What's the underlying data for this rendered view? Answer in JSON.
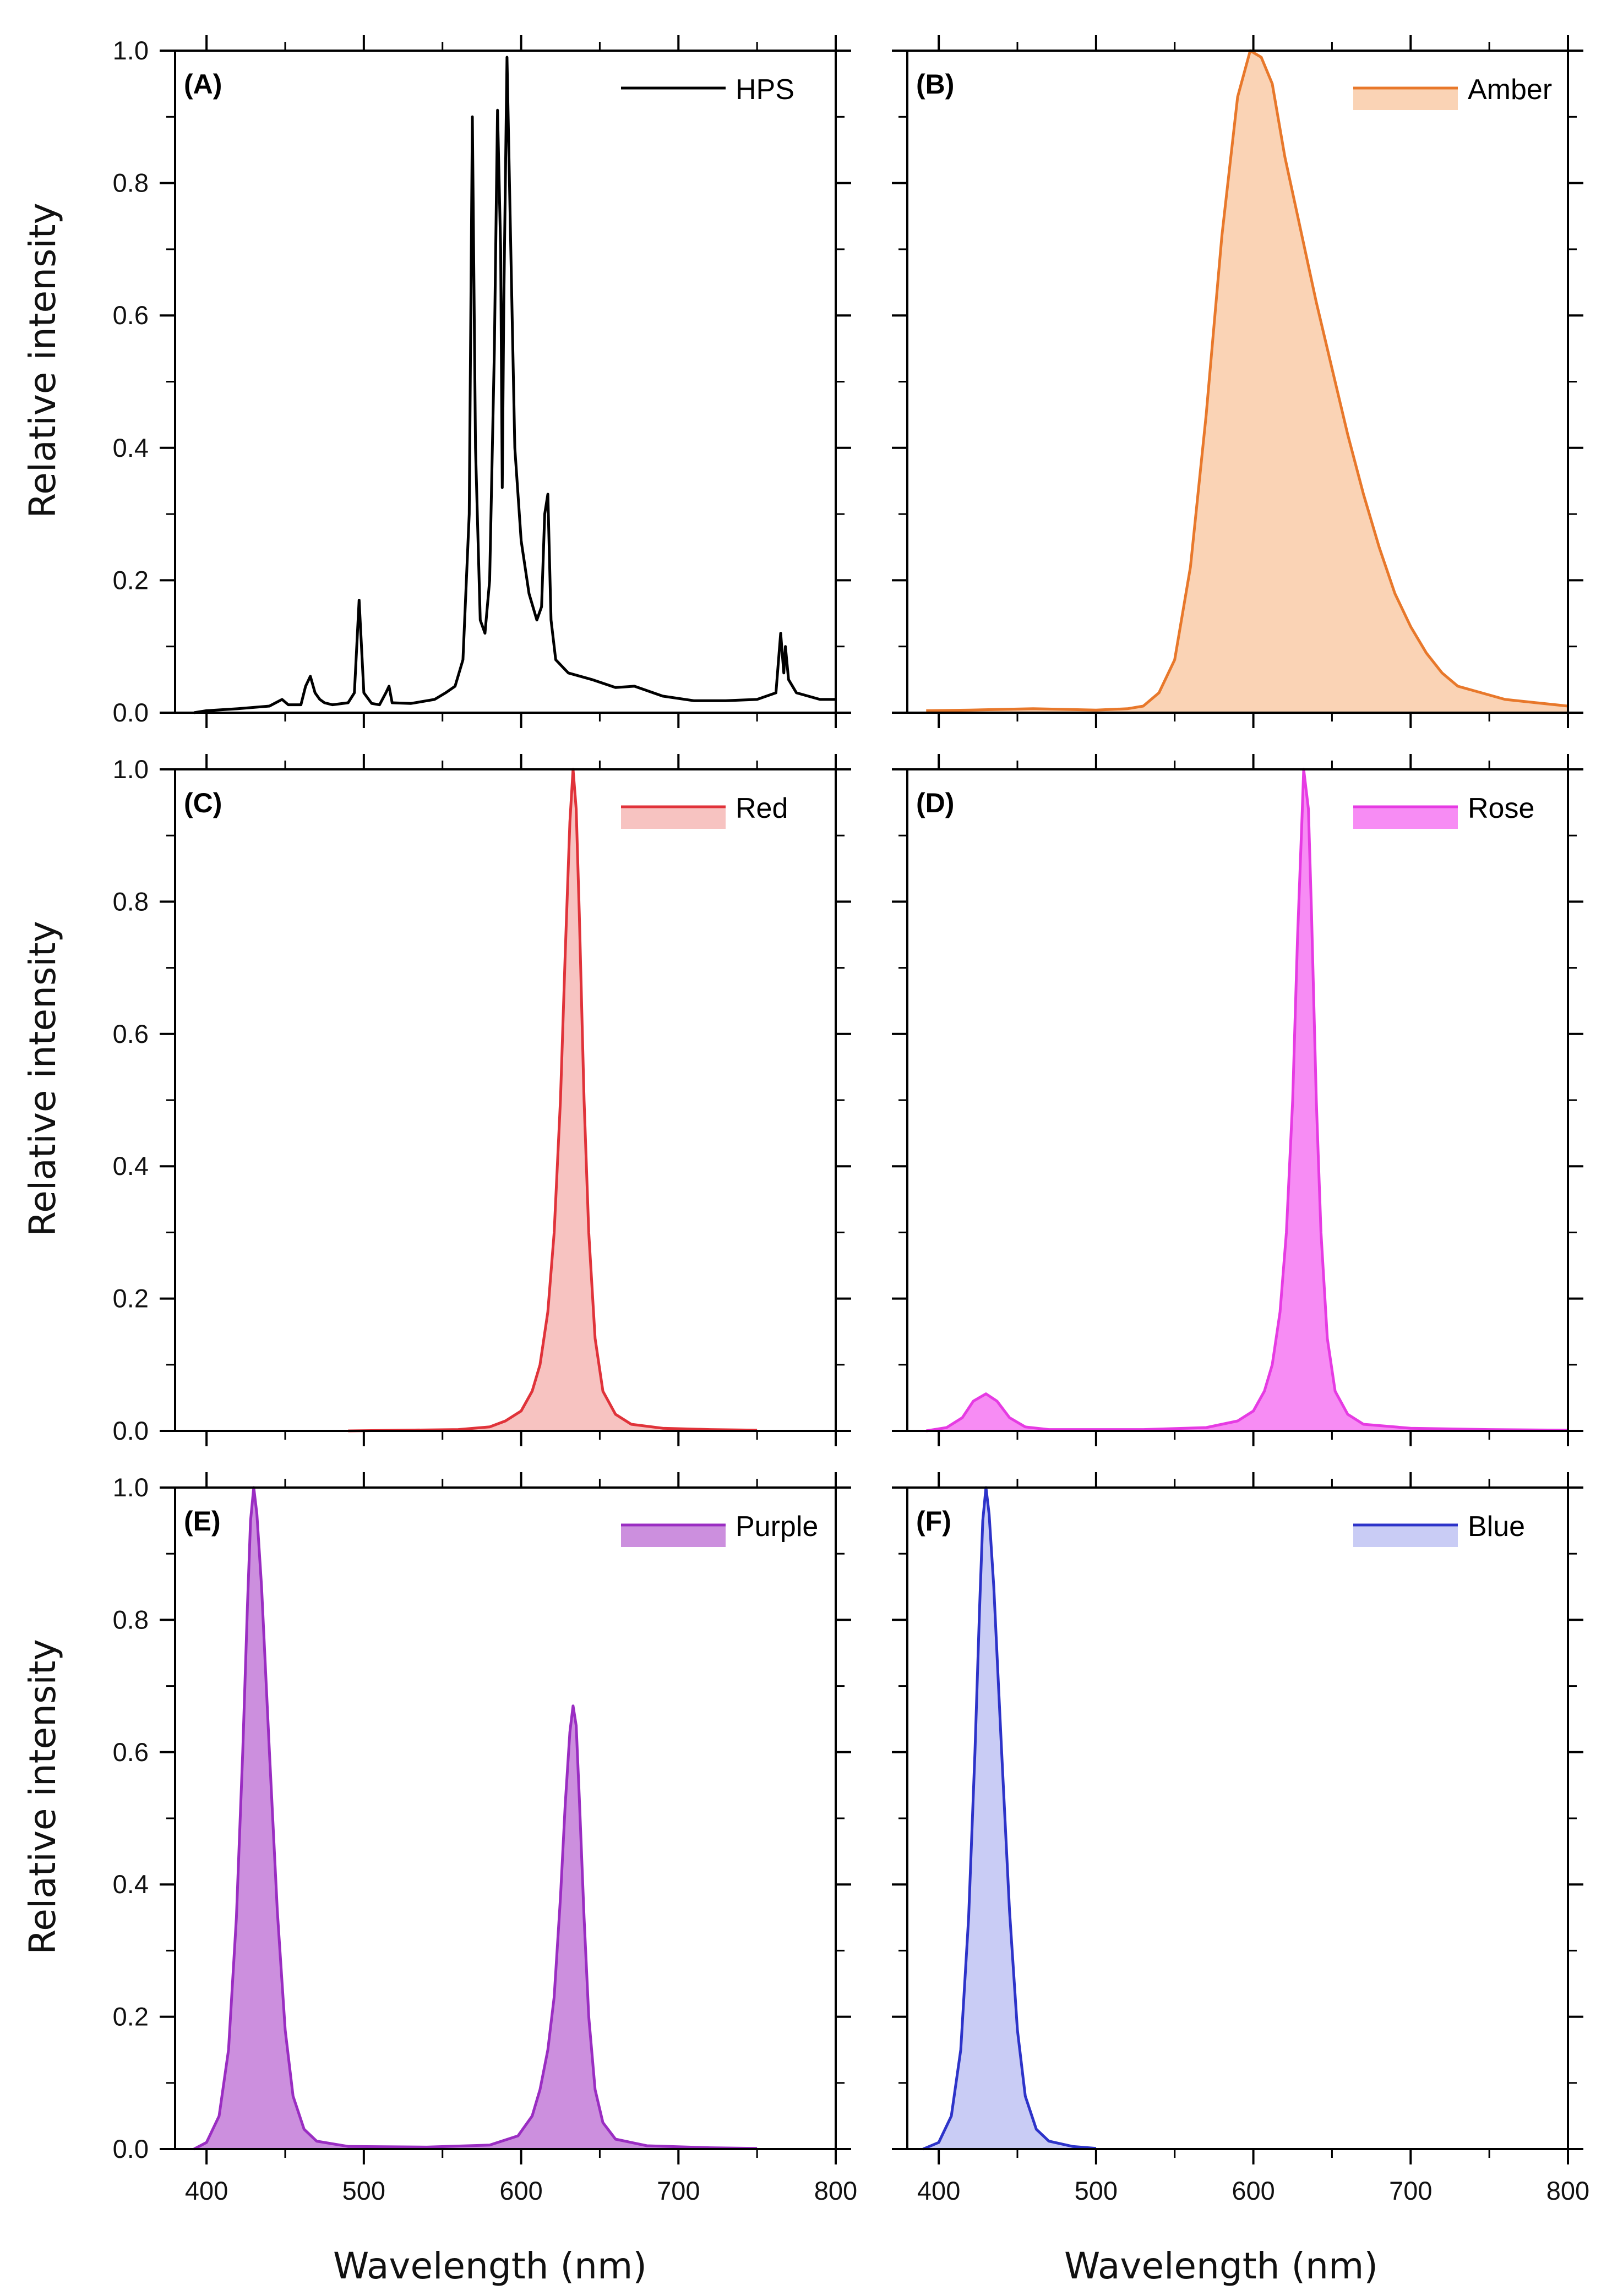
{
  "axes": {
    "ylabel": "Relative intensity",
    "xlabel": "Wavelength (nm)",
    "x_ticks": [
      "400",
      "500",
      "600",
      "700",
      "800"
    ],
    "y_ticks": [
      "0.0",
      "0.2",
      "0.4",
      "0.6",
      "0.8",
      "1.0"
    ]
  },
  "chart_data": [
    {
      "type": "line",
      "panel": "(A)",
      "legend": "HPS",
      "color": "#000000",
      "fill": "none",
      "xlim": [
        380,
        800
      ],
      "ylim": [
        0,
        1
      ],
      "xlabel": "",
      "ylabel": "Relative intensity",
      "points": [
        [
          392,
          0
        ],
        [
          400,
          0.003
        ],
        [
          420,
          0.006
        ],
        [
          440,
          0.01
        ],
        [
          448,
          0.02
        ],
        [
          452,
          0.012
        ],
        [
          460,
          0.012
        ],
        [
          463,
          0.04
        ],
        [
          466,
          0.055
        ],
        [
          469,
          0.03
        ],
        [
          472,
          0.02
        ],
        [
          475,
          0.015
        ],
        [
          480,
          0.012
        ],
        [
          490,
          0.015
        ],
        [
          494,
          0.03
        ],
        [
          497,
          0.17
        ],
        [
          500,
          0.03
        ],
        [
          505,
          0.014
        ],
        [
          510,
          0.012
        ],
        [
          514,
          0.03
        ],
        [
          516,
          0.04
        ],
        [
          518,
          0.015
        ],
        [
          530,
          0.014
        ],
        [
          545,
          0.02
        ],
        [
          552,
          0.03
        ],
        [
          558,
          0.04
        ],
        [
          563,
          0.08
        ],
        [
          567,
          0.3
        ],
        [
          569,
          0.9
        ],
        [
          571,
          0.4
        ],
        [
          574,
          0.14
        ],
        [
          577,
          0.12
        ],
        [
          580,
          0.2
        ],
        [
          583,
          0.55
        ],
        [
          585,
          0.91
        ],
        [
          587,
          0.7
        ],
        [
          588,
          0.34
        ],
        [
          589,
          0.62
        ],
        [
          591,
          0.99
        ],
        [
          593,
          0.75
        ],
        [
          596,
          0.4
        ],
        [
          600,
          0.26
        ],
        [
          605,
          0.18
        ],
        [
          610,
          0.14
        ],
        [
          613,
          0.16
        ],
        [
          615,
          0.3
        ],
        [
          617,
          0.33
        ],
        [
          619,
          0.14
        ],
        [
          622,
          0.08
        ],
        [
          630,
          0.06
        ],
        [
          645,
          0.05
        ],
        [
          660,
          0.038
        ],
        [
          672,
          0.04
        ],
        [
          690,
          0.025
        ],
        [
          710,
          0.018
        ],
        [
          730,
          0.018
        ],
        [
          750,
          0.02
        ],
        [
          762,
          0.03
        ],
        [
          765,
          0.12
        ],
        [
          767,
          0.06
        ],
        [
          768,
          0.1
        ],
        [
          770,
          0.05
        ],
        [
          775,
          0.03
        ],
        [
          790,
          0.02
        ],
        [
          800,
          0.02
        ]
      ]
    },
    {
      "type": "area",
      "panel": "(B)",
      "legend": "Amber",
      "color": "#E8782B",
      "fill": "#FAD3B5",
      "xlim": [
        380,
        800
      ],
      "ylim": [
        0,
        1
      ],
      "xlabel": "",
      "ylabel": "",
      "points": [
        [
          392,
          0.003
        ],
        [
          420,
          0.004
        ],
        [
          460,
          0.006
        ],
        [
          500,
          0.004
        ],
        [
          520,
          0.006
        ],
        [
          530,
          0.01
        ],
        [
          540,
          0.03
        ],
        [
          550,
          0.08
        ],
        [
          560,
          0.22
        ],
        [
          570,
          0.45
        ],
        [
          580,
          0.72
        ],
        [
          590,
          0.93
        ],
        [
          598,
          1.0
        ],
        [
          605,
          0.99
        ],
        [
          612,
          0.95
        ],
        [
          620,
          0.84
        ],
        [
          630,
          0.73
        ],
        [
          640,
          0.62
        ],
        [
          650,
          0.52
        ],
        [
          660,
          0.42
        ],
        [
          670,
          0.33
        ],
        [
          680,
          0.25
        ],
        [
          690,
          0.18
        ],
        [
          700,
          0.13
        ],
        [
          710,
          0.09
        ],
        [
          720,
          0.06
        ],
        [
          730,
          0.04
        ],
        [
          745,
          0.03
        ],
        [
          760,
          0.02
        ],
        [
          780,
          0.015
        ],
        [
          800,
          0.01
        ]
      ]
    },
    {
      "type": "area",
      "panel": "(C)",
      "legend": "Red",
      "color": "#E0333A",
      "fill": "#F7C3C1",
      "xlim": [
        380,
        800
      ],
      "ylim": [
        0,
        1
      ],
      "xlabel": "",
      "ylabel": "Relative intensity",
      "points": [
        [
          490,
          0.0
        ],
        [
          560,
          0.002
        ],
        [
          580,
          0.006
        ],
        [
          590,
          0.015
        ],
        [
          600,
          0.03
        ],
        [
          607,
          0.06
        ],
        [
          612,
          0.1
        ],
        [
          617,
          0.18
        ],
        [
          621,
          0.3
        ],
        [
          625,
          0.5
        ],
        [
          628,
          0.72
        ],
        [
          631,
          0.92
        ],
        [
          633,
          1.0
        ],
        [
          635,
          0.94
        ],
        [
          637,
          0.78
        ],
        [
          640,
          0.5
        ],
        [
          643,
          0.3
        ],
        [
          647,
          0.14
        ],
        [
          652,
          0.06
        ],
        [
          660,
          0.025
        ],
        [
          670,
          0.01
        ],
        [
          690,
          0.004
        ],
        [
          720,
          0.002
        ],
        [
          750,
          0.001
        ]
      ]
    },
    {
      "type": "area",
      "panel": "(D)",
      "legend": "Rose",
      "color": "#E63BE3",
      "fill": "#F78CF4",
      "xlim": [
        380,
        800
      ],
      "ylim": [
        0,
        1
      ],
      "xlabel": "",
      "ylabel": "",
      "points": [
        [
          392,
          0.0
        ],
        [
          405,
          0.005
        ],
        [
          415,
          0.02
        ],
        [
          422,
          0.045
        ],
        [
          430,
          0.056
        ],
        [
          437,
          0.045
        ],
        [
          445,
          0.02
        ],
        [
          455,
          0.006
        ],
        [
          470,
          0.002
        ],
        [
          530,
          0.002
        ],
        [
          570,
          0.005
        ],
        [
          590,
          0.015
        ],
        [
          600,
          0.03
        ],
        [
          607,
          0.06
        ],
        [
          612,
          0.1
        ],
        [
          617,
          0.18
        ],
        [
          621,
          0.3
        ],
        [
          625,
          0.5
        ],
        [
          628,
          0.74
        ],
        [
          631,
          0.93
        ],
        [
          632,
          1.0
        ],
        [
          635,
          0.94
        ],
        [
          637,
          0.78
        ],
        [
          640,
          0.5
        ],
        [
          643,
          0.3
        ],
        [
          647,
          0.14
        ],
        [
          652,
          0.06
        ],
        [
          660,
          0.025
        ],
        [
          670,
          0.01
        ],
        [
          700,
          0.004
        ],
        [
          750,
          0.002
        ],
        [
          800,
          0.001
        ]
      ]
    },
    {
      "type": "area",
      "panel": "(E)",
      "legend": "Purple",
      "color": "#9A2DC2",
      "fill": "#CC8FDE",
      "xlim": [
        380,
        800
      ],
      "ylim": [
        0,
        1
      ],
      "xlabel": "Wavelength (nm)",
      "ylabel": "Relative intensity",
      "points": [
        [
          392,
          0.0
        ],
        [
          400,
          0.01
        ],
        [
          408,
          0.05
        ],
        [
          414,
          0.15
        ],
        [
          419,
          0.35
        ],
        [
          423,
          0.6
        ],
        [
          426,
          0.82
        ],
        [
          428,
          0.95
        ],
        [
          430,
          1.0
        ],
        [
          432,
          0.96
        ],
        [
          435,
          0.85
        ],
        [
          440,
          0.6
        ],
        [
          445,
          0.36
        ],
        [
          450,
          0.18
        ],
        [
          455,
          0.08
        ],
        [
          462,
          0.03
        ],
        [
          470,
          0.012
        ],
        [
          490,
          0.004
        ],
        [
          540,
          0.003
        ],
        [
          580,
          0.006
        ],
        [
          598,
          0.02
        ],
        [
          607,
          0.05
        ],
        [
          612,
          0.09
        ],
        [
          617,
          0.15
        ],
        [
          621,
          0.23
        ],
        [
          625,
          0.38
        ],
        [
          628,
          0.52
        ],
        [
          631,
          0.63
        ],
        [
          633,
          0.67
        ],
        [
          635,
          0.64
        ],
        [
          637,
          0.53
        ],
        [
          640,
          0.35
        ],
        [
          643,
          0.2
        ],
        [
          647,
          0.09
        ],
        [
          652,
          0.04
        ],
        [
          660,
          0.015
        ],
        [
          680,
          0.005
        ],
        [
          720,
          0.002
        ],
        [
          750,
          0.001
        ]
      ]
    },
    {
      "type": "area",
      "panel": "(F)",
      "legend": "Blue",
      "color": "#2D33C9",
      "fill": "#C9CCF5",
      "xlim": [
        380,
        800
      ],
      "ylim": [
        0,
        1
      ],
      "xlabel": "Wavelength (nm)",
      "ylabel": "",
      "points": [
        [
          390,
          0.0
        ],
        [
          400,
          0.01
        ],
        [
          408,
          0.05
        ],
        [
          414,
          0.15
        ],
        [
          419,
          0.35
        ],
        [
          423,
          0.6
        ],
        [
          426,
          0.82
        ],
        [
          428,
          0.95
        ],
        [
          430,
          1.0
        ],
        [
          432,
          0.96
        ],
        [
          435,
          0.85
        ],
        [
          440,
          0.6
        ],
        [
          445,
          0.36
        ],
        [
          450,
          0.18
        ],
        [
          455,
          0.08
        ],
        [
          462,
          0.03
        ],
        [
          470,
          0.012
        ],
        [
          485,
          0.004
        ],
        [
          500,
          0.001
        ]
      ]
    }
  ]
}
